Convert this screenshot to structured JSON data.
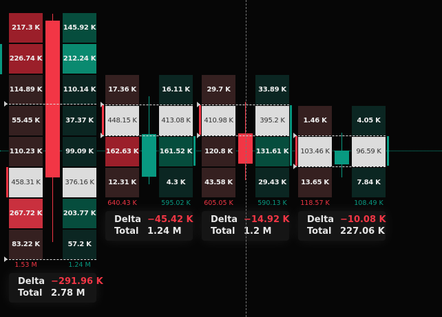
{
  "colors": {
    "bid_dark": "#352020",
    "bid_mid": "#9b1f2a",
    "bid_bright": "#c9303e",
    "ask_dark": "#0b2622",
    "ask_mid": "#064d3d",
    "ask_bright": "#0a8a70",
    "poc": "#dcdcdc",
    "up": "#089981",
    "down": "#f23645"
  },
  "labels": {
    "delta": "Delta",
    "total": "Total"
  },
  "candles": [
    {
      "direction": "down",
      "bid": [
        {
          "value": "217.3 K",
          "level": "mid"
        },
        {
          "value": "226.74 K",
          "level": "mid"
        },
        {
          "value": "114.89 K",
          "level": "dark"
        },
        {
          "value": "55.45 K",
          "level": "dark"
        },
        {
          "value": "110.23 K",
          "level": "dark"
        },
        {
          "value": "458.31 K",
          "level": "poc"
        },
        {
          "value": "267.72 K",
          "level": "bright"
        },
        {
          "value": "83.22 K",
          "level": "dark"
        }
      ],
      "ask": [
        {
          "value": "145.92 K",
          "level": "mid"
        },
        {
          "value": "212.24 K",
          "level": "bright"
        },
        {
          "value": "110.14 K",
          "level": "dark"
        },
        {
          "value": "37.37 K",
          "level": "dark"
        },
        {
          "value": "99.09 K",
          "level": "dark"
        },
        {
          "value": "376.16 K",
          "level": "poc"
        },
        {
          "value": "203.77 K",
          "level": "mid"
        },
        {
          "value": "57.2 K",
          "level": "dark"
        }
      ],
      "bid_total": "1.53 M",
      "ask_total": "1.24 M",
      "delta": "−291.96 K",
      "total": "2.78 M"
    },
    {
      "direction": "up",
      "bid": [
        {
          "value": "17.36 K",
          "level": "dark"
        },
        {
          "value": "448.15 K",
          "level": "poc"
        },
        {
          "value": "162.63 K",
          "level": "mid"
        },
        {
          "value": "12.31 K",
          "level": "dark"
        }
      ],
      "ask": [
        {
          "value": "16.11 K",
          "level": "dark"
        },
        {
          "value": "413.08 K",
          "level": "poc"
        },
        {
          "value": "161.52 K",
          "level": "mid"
        },
        {
          "value": "4.3 K",
          "level": "dark"
        }
      ],
      "bid_total": "640.43 K",
      "ask_total": "595.02 K",
      "delta": "−45.42 K",
      "total": "1.24 M"
    },
    {
      "direction": "down",
      "bid": [
        {
          "value": "29.7 K",
          "level": "dark"
        },
        {
          "value": "410.98 K",
          "level": "poc"
        },
        {
          "value": "120.8 K",
          "level": "dark"
        },
        {
          "value": "43.58 K",
          "level": "dark"
        }
      ],
      "ask": [
        {
          "value": "33.89 K",
          "level": "dark"
        },
        {
          "value": "395.2 K",
          "level": "poc"
        },
        {
          "value": "131.61 K",
          "level": "mid"
        },
        {
          "value": "29.43 K",
          "level": "dark"
        }
      ],
      "bid_total": "605.05 K",
      "ask_total": "590.13 K",
      "delta": "−14.92 K",
      "total": "1.2 M"
    },
    {
      "direction": "up",
      "bid": [
        {
          "value": "1.46 K",
          "level": "dark"
        },
        {
          "value": "103.46 K",
          "level": "poc"
        },
        {
          "value": "13.65 K",
          "level": "dark"
        }
      ],
      "ask": [
        {
          "value": "4.05 K",
          "level": "dark"
        },
        {
          "value": "96.59 K",
          "level": "poc"
        },
        {
          "value": "7.84 K",
          "level": "dark"
        }
      ],
      "bid_total": "118.57 K",
      "ask_total": "108.49 K",
      "delta": "−10.08 K",
      "total": "227.06 K"
    }
  ]
}
